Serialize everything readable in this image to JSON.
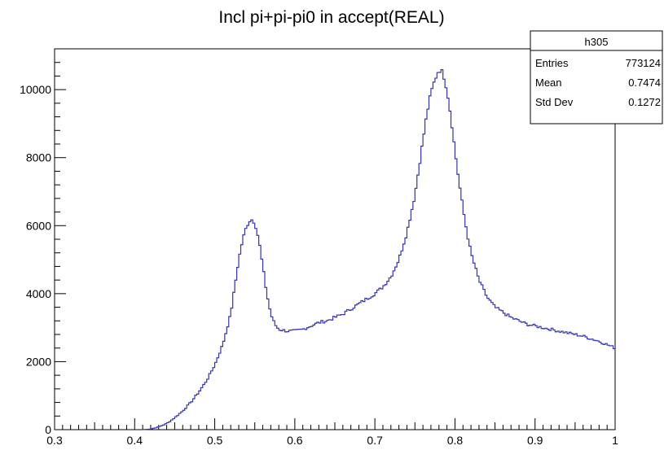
{
  "chart_data": {
    "type": "line",
    "title": "Incl pi+pi-pi0 in accept(REAL)",
    "xlabel": "",
    "ylabel": "",
    "xlim": [
      0.3,
      1.0
    ],
    "ylim": [
      0,
      11200
    ],
    "x_ticks": [
      0.3,
      0.4,
      0.5,
      0.6,
      0.7,
      0.8,
      0.9,
      1.0
    ],
    "x_tick_labels": [
      "0.3",
      "0.4",
      "0.5",
      "0.6",
      "0.7",
      "0.8",
      "0.9",
      "1"
    ],
    "y_ticks": [
      0,
      2000,
      4000,
      6000,
      8000,
      10000
    ],
    "y_tick_labels": [
      "0",
      "2000",
      "4000",
      "6000",
      "8000",
      "10000"
    ],
    "grid": false,
    "legend": "none",
    "line_color": "#3333aa",
    "stats_box": {
      "name": "h305",
      "rows": [
        {
          "label": "Entries",
          "value": "773124"
        },
        {
          "label": "Mean",
          "value": "0.7474"
        },
        {
          "label": "Std Dev",
          "value": "0.1272"
        }
      ]
    },
    "series": [
      {
        "x": [
          0.41,
          0.42,
          0.43,
          0.44,
          0.45,
          0.46,
          0.47,
          0.48,
          0.49,
          0.5,
          0.51,
          0.52,
          0.525,
          0.53,
          0.535,
          0.54,
          0.545,
          0.55,
          0.555,
          0.56,
          0.565,
          0.57,
          0.575,
          0.58,
          0.59,
          0.6,
          0.61,
          0.62,
          0.63,
          0.64,
          0.65,
          0.66,
          0.67,
          0.68,
          0.69,
          0.7,
          0.71,
          0.72,
          0.73,
          0.74,
          0.75,
          0.755,
          0.76,
          0.765,
          0.77,
          0.775,
          0.78,
          0.785,
          0.79,
          0.795,
          0.8,
          0.805,
          0.81,
          0.815,
          0.82,
          0.83,
          0.84,
          0.85,
          0.86,
          0.87,
          0.88,
          0.89,
          0.9,
          0.92,
          0.94,
          0.96,
          0.98,
          1.0
        ],
        "y": [
          0,
          20,
          80,
          180,
          350,
          550,
          800,
          1100,
          1450,
          1900,
          2500,
          3400,
          4200,
          5000,
          5600,
          6000,
          6200,
          6100,
          5600,
          4800,
          4000,
          3400,
          3100,
          2950,
          2900,
          2900,
          2950,
          3050,
          3150,
          3200,
          3300,
          3400,
          3550,
          3700,
          3850,
          4000,
          4200,
          4500,
          5000,
          5800,
          6900,
          7700,
          8500,
          9300,
          9900,
          10300,
          10600,
          10500,
          10000,
          9200,
          8200,
          7300,
          6500,
          5800,
          5200,
          4400,
          3900,
          3600,
          3450,
          3300,
          3200,
          3100,
          3050,
          2950,
          2850,
          2750,
          2600,
          2400
        ]
      }
    ]
  }
}
